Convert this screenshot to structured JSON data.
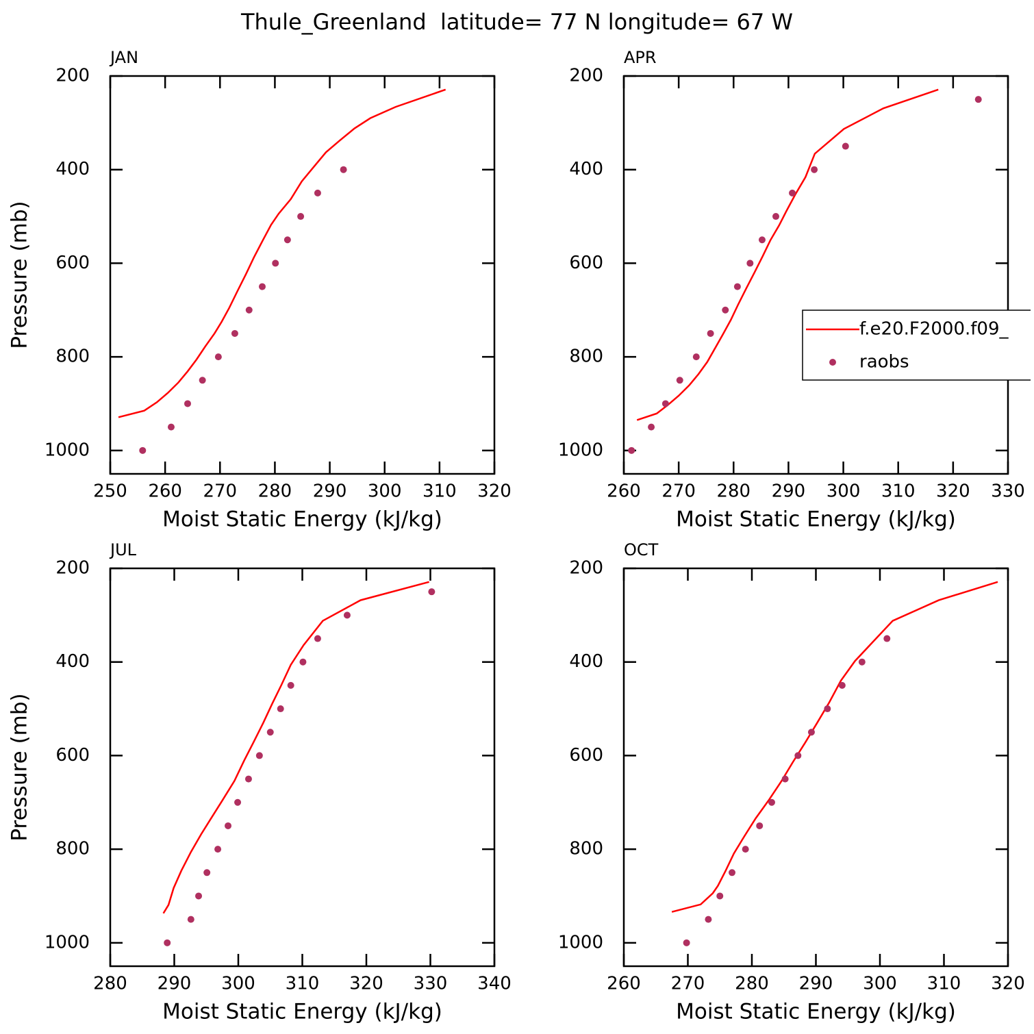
{
  "title": "Thule_Greenland  latitude= 77 N longitude= 67 W",
  "chart_data": [
    {
      "type": "line",
      "title": "JAN",
      "xlabel": "Moist Static Energy (kJ/kg)",
      "ylabel": "Pressure (mb)",
      "xlim": [
        250,
        320
      ],
      "xticks": [
        250,
        260,
        270,
        280,
        290,
        300,
        310,
        320
      ],
      "ylim": [
        1050,
        200
      ],
      "yticks": [
        200,
        400,
        600,
        800,
        1000
      ],
      "series": [
        {
          "name": "f.e20.F2000.f09_",
          "color": "#ff0000",
          "style": "line",
          "x": [
            251.5,
            256.2,
            258.5,
            260.5,
            262.4,
            264.1,
            265.7,
            267.3,
            269.0,
            270.3,
            271.7,
            273.2,
            274.7,
            276.2,
            277.8,
            279.3,
            280.7,
            282.9,
            284.9,
            287.1,
            289.3,
            291.8,
            294.5,
            297.4,
            302.0,
            311.1
          ],
          "y": [
            929,
            915,
            897,
            877,
            855,
            831,
            806,
            778,
            750,
            725,
            695,
            659,
            624,
            587,
            551,
            518,
            494,
            463,
            425,
            394,
            363,
            338,
            312,
            290,
            266,
            229
          ]
        },
        {
          "name": "raobs",
          "color": "#b03060",
          "style": "markers",
          "x": [
            255.9,
            261.1,
            264.1,
            266.8,
            269.7,
            272.7,
            275.3,
            277.7,
            280.1,
            282.3,
            284.7,
            287.8,
            292.5
          ],
          "y": [
            1000,
            950,
            900,
            850,
            800,
            750,
            700,
            650,
            600,
            550,
            500,
            450,
            400
          ]
        }
      ]
    },
    {
      "type": "line",
      "title": "APR",
      "xlabel": "Moist Static Energy (kJ/kg)",
      "legend": "right",
      "xlim": [
        260,
        330
      ],
      "xticks": [
        260,
        270,
        280,
        290,
        300,
        310,
        320,
        330
      ],
      "ylim": [
        1050,
        200
      ],
      "yticks": [
        200,
        400,
        600,
        800,
        1000
      ],
      "series": [
        {
          "name": "f.e20.F2000.f09_",
          "color": "#ff0000",
          "style": "line",
          "x": [
            262.4,
            266.0,
            268.0,
            270.0,
            271.9,
            273.6,
            275.2,
            276.7,
            278.1,
            279.5,
            280.8,
            282.3,
            283.8,
            285.3,
            286.7,
            288.3,
            289.6,
            291.2,
            293.1,
            294.8,
            300.1,
            307.3,
            317.3
          ],
          "y": [
            935,
            921,
            903,
            883,
            861,
            837,
            811,
            780,
            751,
            721,
            689,
            654,
            620,
            585,
            551,
            519,
            489,
            454,
            416,
            366,
            313,
            269,
            229
          ]
        },
        {
          "name": "raobs",
          "color": "#b03060",
          "style": "markers",
          "x": [
            261.4,
            265.0,
            267.6,
            270.2,
            273.2,
            275.8,
            278.5,
            280.7,
            283.0,
            285.2,
            287.7,
            290.7,
            294.7,
            300.4,
            324.6
          ],
          "y": [
            1000,
            950,
            900,
            850,
            800,
            750,
            700,
            650,
            600,
            550,
            500,
            450,
            400,
            350,
            250
          ]
        }
      ]
    },
    {
      "type": "line",
      "title": "JUL",
      "xlabel": "Moist Static Energy (kJ/kg)",
      "ylabel": "Pressure (mb)",
      "xlim": [
        280,
        340
      ],
      "xticks": [
        280,
        290,
        300,
        310,
        320,
        330,
        340
      ],
      "ylim": [
        1050,
        200
      ],
      "yticks": [
        200,
        400,
        600,
        800,
        1000
      ],
      "series": [
        {
          "name": "f.e20.F2000.f09_",
          "color": "#ff0000",
          "style": "line",
          "x": [
            288.3,
            289.1,
            289.9,
            291.1,
            292.6,
            294.2,
            295.8,
            297.5,
            299.4,
            300.9,
            302.4,
            303.9,
            305.3,
            306.7,
            308.2,
            310.2,
            313.2,
            319.1,
            329.8
          ],
          "y": [
            937,
            919,
            883,
            846,
            806,
            768,
            733,
            696,
            654,
            611,
            571,
            530,
            489,
            450,
            406,
            364,
            312,
            268,
            229
          ]
        },
        {
          "name": "raobs",
          "color": "#b03060",
          "style": "markers",
          "x": [
            288.9,
            292.6,
            293.8,
            295.1,
            296.8,
            298.4,
            299.9,
            301.6,
            303.3,
            305.0,
            306.6,
            308.2,
            310.1,
            312.4,
            317.0,
            330.2
          ],
          "y": [
            1000,
            950,
            900,
            850,
            800,
            750,
            700,
            650,
            600,
            550,
            500,
            450,
            400,
            350,
            300,
            250
          ]
        }
      ]
    },
    {
      "type": "line",
      "title": "OCT",
      "xlabel": "Moist Static Energy (kJ/kg)",
      "xlim": [
        260,
        320
      ],
      "xticks": [
        260,
        270,
        280,
        290,
        300,
        310,
        320
      ],
      "ylim": [
        1050,
        200
      ],
      "yticks": [
        200,
        400,
        600,
        800,
        1000
      ],
      "series": [
        {
          "name": "f.e20.F2000.f09_",
          "color": "#ff0000",
          "style": "line",
          "x": [
            267.5,
            272.0,
            273.9,
            274.7,
            275.9,
            277.2,
            278.8,
            280.6,
            282.6,
            284.6,
            286.4,
            288.3,
            290.2,
            292.1,
            293.9,
            296.1,
            298.5,
            302.0,
            309.2,
            318.4
          ],
          "y": [
            934,
            918,
            894,
            878,
            846,
            809,
            773,
            734,
            696,
            655,
            614,
            573,
            530,
            486,
            440,
            398,
            363,
            312,
            268,
            229
          ]
        },
        {
          "name": "raobs",
          "color": "#b03060",
          "style": "markers",
          "x": [
            269.8,
            273.2,
            275.0,
            276.9,
            279.0,
            281.2,
            283.1,
            285.2,
            287.2,
            289.3,
            291.8,
            294.1,
            297.2,
            301.1
          ],
          "y": [
            1000,
            950,
            900,
            850,
            800,
            750,
            700,
            650,
            600,
            550,
            500,
            450,
            400,
            350
          ]
        }
      ]
    }
  ]
}
